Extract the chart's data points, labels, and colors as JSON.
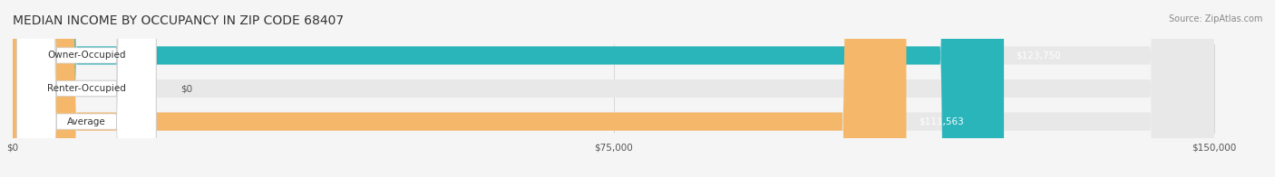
{
  "title": "MEDIAN INCOME BY OCCUPANCY IN ZIP CODE 68407",
  "source": "Source: ZipAtlas.com",
  "categories": [
    "Owner-Occupied",
    "Renter-Occupied",
    "Average"
  ],
  "values": [
    123750,
    0,
    111563
  ],
  "bar_colors": [
    "#2ab5bb",
    "#c9a8d4",
    "#f5b86a"
  ],
  "value_labels": [
    "$123,750",
    "$0",
    "$111,563"
  ],
  "xlim": [
    0,
    150000
  ],
  "xticks": [
    0,
    75000,
    150000
  ],
  "xtick_labels": [
    "$0",
    "$75,000",
    "$150,000"
  ],
  "background_color": "#f5f5f5",
  "bar_background_color": "#e8e8e8",
  "bar_height": 0.55,
  "figsize": [
    14.06,
    1.96
  ],
  "dpi": 100
}
